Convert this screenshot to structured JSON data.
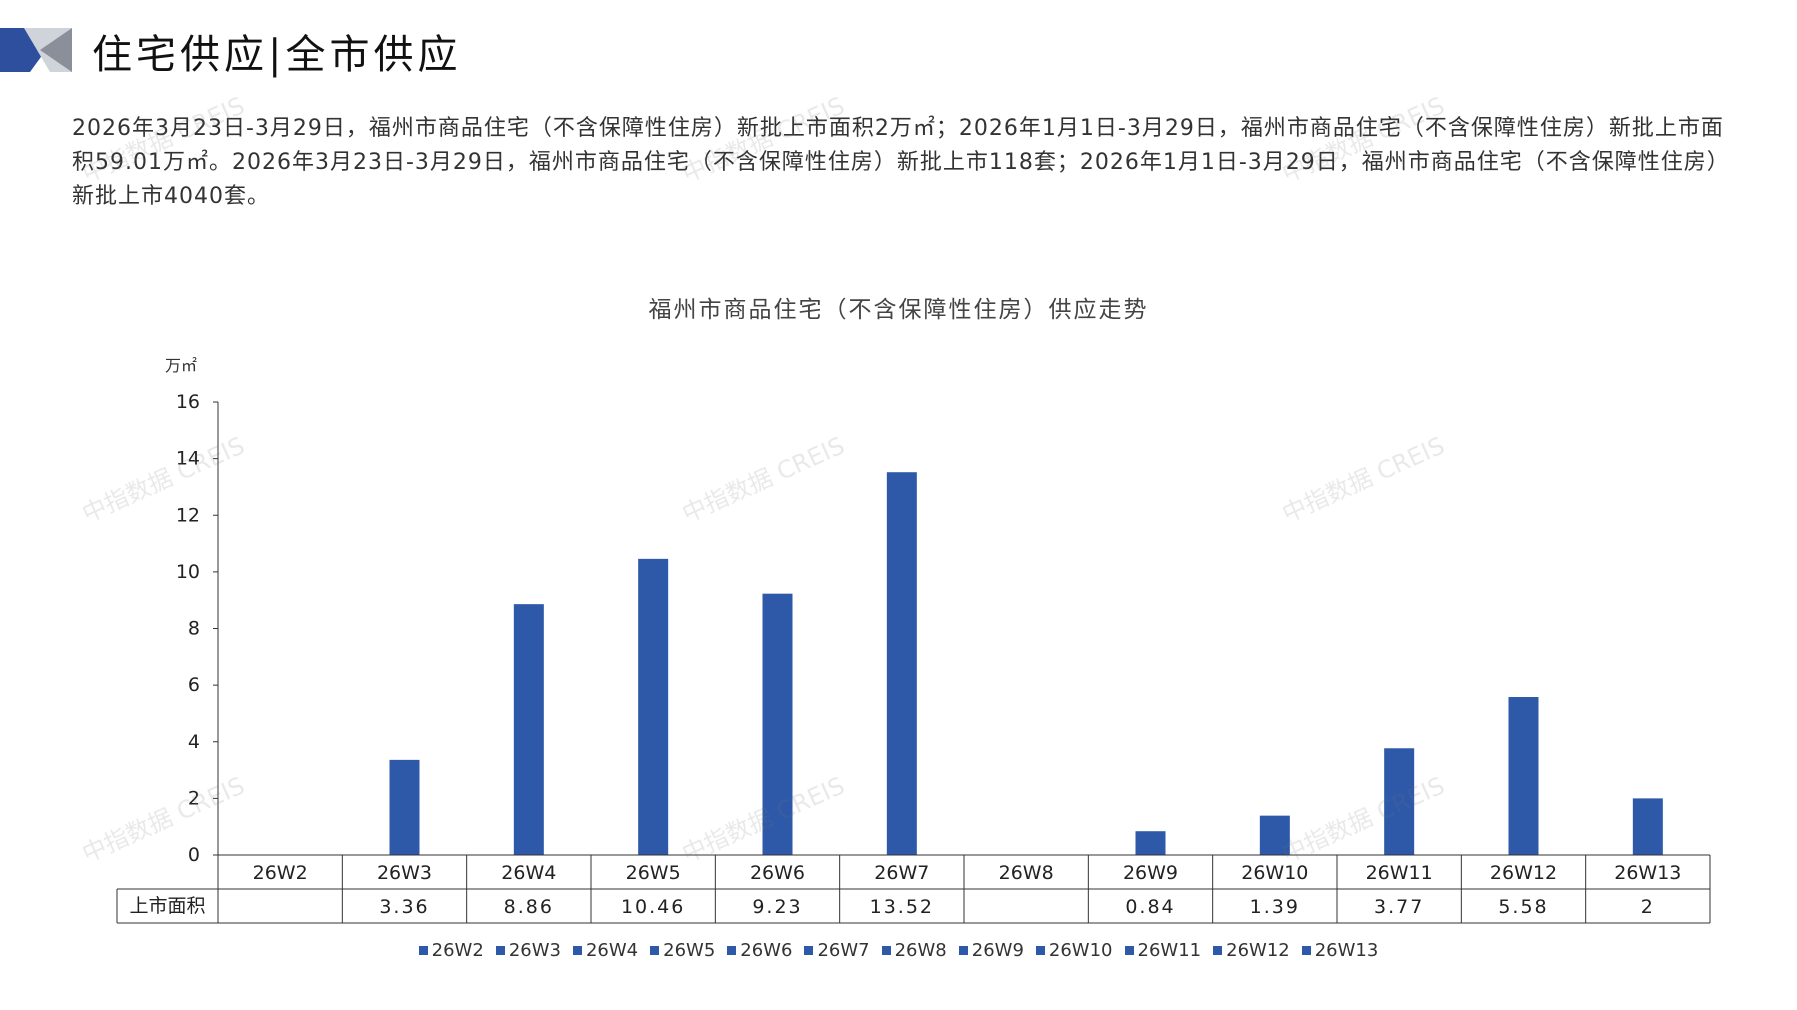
{
  "header": {
    "title": "住宅供应|全市供应",
    "accent_color": "#2E4F9E"
  },
  "summary": {
    "text": "2026年3月23日-3月29日，福州市商品住宅（不含保障性住房）新批上市面积2万㎡；2026年1月1日-3月29日，福州市商品住宅（不含保障性住房）新批上市面积59.01万㎡。2026年3月23日-3月29日，福州市商品住宅（不含保障性住房）新批上市118套；2026年1月1日-3月29日，福州市商品住宅（不含保障性住房）新批上市4040套。"
  },
  "watermark": "中指数据 CREIS",
  "chart_data": {
    "type": "bar",
    "title": "福州市商品住宅（不含保障性住房）供应走势",
    "unit": "万㎡",
    "categories": [
      "26W2",
      "26W3",
      "26W4",
      "26W5",
      "26W6",
      "26W7",
      "26W8",
      "26W9",
      "26W10",
      "26W11",
      "26W12",
      "26W13"
    ],
    "series": [
      {
        "name": "上市面积",
        "values": [
          null,
          3.36,
          8.86,
          10.46,
          9.23,
          13.52,
          null,
          0.84,
          1.39,
          3.77,
          5.58,
          2
        ]
      }
    ],
    "table_values": [
      "",
      "3.36",
      "8.86",
      "10.46",
      "9.23",
      "13.52",
      "",
      "0.84",
      "1.39",
      "3.77",
      "5.58",
      "2"
    ],
    "yticks": [
      "0",
      "2",
      "4",
      "6",
      "8",
      "10",
      "12",
      "14",
      "16"
    ],
    "ylim": [
      0,
      16
    ],
    "legend": [
      "26W2",
      "26W3",
      "26W4",
      "26W5",
      "26W6",
      "26W7",
      "26W8",
      "26W9",
      "26W10",
      "26W11",
      "26W12",
      "26W13"
    ],
    "legend_position": "bottom",
    "bar_color": "#2E59A8",
    "grid": false
  }
}
